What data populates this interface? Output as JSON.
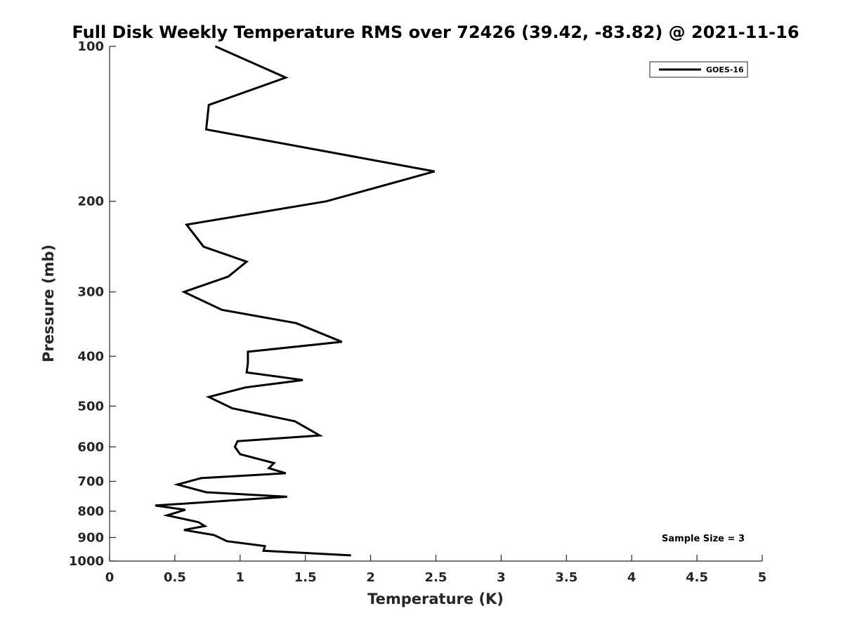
{
  "chart_data": {
    "type": "line",
    "title": "Full Disk Weekly Temperature RMS over 72426 (39.42, -83.82) @ 2021-11-16",
    "xlabel": "Temperature (K)",
    "ylabel": "Pressure (mb)",
    "xlim": [
      0,
      5
    ],
    "ylim": [
      100,
      1000
    ],
    "yscale": "log",
    "y_reversed": true,
    "xticks": [
      "0",
      "0.5",
      "1",
      "1.5",
      "2",
      "2.5",
      "3",
      "3.5",
      "4",
      "4.5",
      "5"
    ],
    "yticks": [
      "100",
      "200",
      "300",
      "400",
      "500",
      "600",
      "700",
      "800",
      "900",
      "1000"
    ],
    "grid": false,
    "legend_position": "top-right",
    "series": [
      {
        "name": "GOES-16",
        "color": "#000000",
        "x": [
          0.81,
          1.35,
          0.76,
          0.74,
          2.49,
          1.66,
          0.59,
          0.72,
          1.05,
          0.91,
          0.57,
          0.86,
          1.43,
          1.78,
          1.06,
          1.06,
          1.05,
          1.48,
          1.04,
          0.76,
          0.94,
          1.42,
          1.61,
          0.98,
          0.96,
          1.0,
          1.26,
          1.22,
          1.35,
          0.7,
          0.52,
          0.74,
          1.36,
          0.35,
          0.58,
          0.44,
          0.68,
          0.73,
          0.57,
          0.8,
          0.9,
          1.19,
          1.18,
          1.85
        ],
        "y": [
          100,
          115,
          130,
          145,
          175,
          200,
          222,
          245,
          262,
          280,
          300,
          325,
          345,
          375,
          392,
          412,
          430,
          445,
          460,
          480,
          505,
          535,
          570,
          585,
          600,
          620,
          645,
          660,
          675,
          690,
          710,
          735,
          750,
          780,
          795,
          815,
          840,
          855,
          870,
          890,
          915,
          935,
          955,
          975
        ]
      }
    ],
    "annotations": [
      "Sample Size = 3"
    ]
  }
}
